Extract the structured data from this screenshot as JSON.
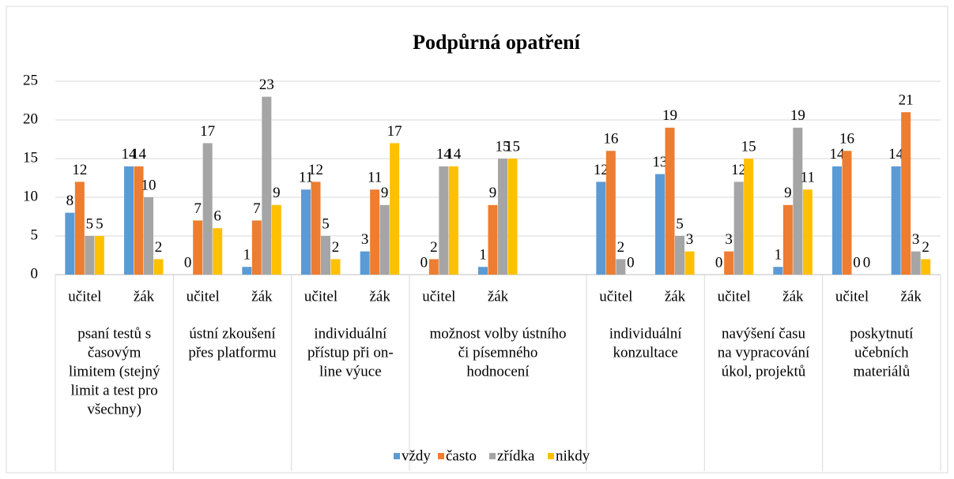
{
  "chart_data": {
    "type": "bar",
    "title": "Podpůrná opatření",
    "groups": [
      {
        "name": [
          "psaní testů s",
          "časovým",
          "limitem (stejný",
          "limit a test pro",
          "všechny)"
        ],
        "categories": [
          "učitel",
          "žák"
        ]
      },
      {
        "name": [
          "ústní zkoušení",
          "přes platformu"
        ],
        "categories": [
          "učitel",
          "žák"
        ]
      },
      {
        "name": [
          "individuální",
          "přístup při on-",
          "line výuce"
        ],
        "categories": [
          "učitel",
          "žák"
        ]
      },
      {
        "name": [
          "možnost volby ústního",
          "či písemného",
          "hodnocení"
        ],
        "categories": [
          "učitel",
          "žák",
          null
        ]
      },
      {
        "name": [
          "individuální",
          "konzultace"
        ],
        "categories": [
          "učitel",
          "žák"
        ]
      },
      {
        "name": [
          "navýšení času",
          "na vypracování",
          "úkol, projektů"
        ],
        "categories": [
          "učitel",
          "žák"
        ]
      },
      {
        "name": [
          "poskytnutí",
          "učebních",
          "materiálů"
        ],
        "categories": [
          "učitel",
          "žák"
        ]
      }
    ],
    "series": [
      {
        "name": "vždy",
        "color": "#5b9bd5",
        "values": [
          8,
          14,
          0,
          1,
          11,
          3,
          0,
          1,
          null,
          12,
          13,
          0,
          1,
          14,
          14
        ]
      },
      {
        "name": "často",
        "color": "#ed7d31",
        "values": [
          12,
          14,
          7,
          7,
          12,
          11,
          2,
          9,
          null,
          16,
          19,
          3,
          9,
          16,
          21
        ]
      },
      {
        "name": "zřídka",
        "color": "#a5a5a5",
        "values": [
          5,
          10,
          17,
          23,
          5,
          9,
          14,
          15,
          null,
          2,
          5,
          12,
          19,
          0,
          3
        ]
      },
      {
        "name": "nikdy",
        "color": "#ffc000",
        "values": [
          5,
          2,
          6,
          9,
          2,
          17,
          14,
          15,
          null,
          0,
          3,
          15,
          11,
          0,
          2
        ]
      }
    ],
    "ylim": [
      0,
      25
    ],
    "yticks": [
      0,
      5,
      10,
      15,
      20,
      25
    ],
    "grid": true,
    "legend": "bottom"
  }
}
